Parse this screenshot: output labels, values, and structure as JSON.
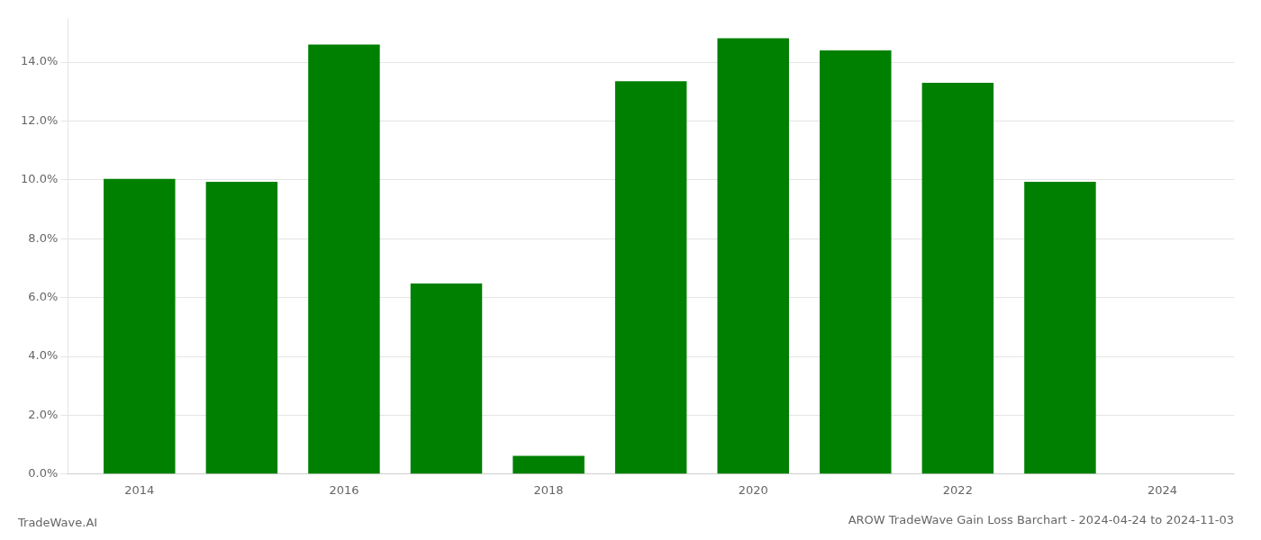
{
  "chart_data": {
    "type": "bar",
    "title": "AROW TradeWave Gain Loss Barchart - 2024-04-24 to 2024-11-03",
    "annotations": [
      "TradeWave.AI"
    ],
    "x": [
      2014,
      2015,
      2016,
      2017,
      2018,
      2019,
      2020,
      2021,
      2022,
      2023
    ],
    "values": [
      0.1003,
      0.0993,
      0.146,
      0.0648,
      0.0062,
      0.1335,
      0.1481,
      0.144,
      0.133,
      0.0993
    ],
    "color": "#008000",
    "xlim": [
      2013.3,
      2024.7
    ],
    "xticks": [
      2014,
      2016,
      2018,
      2020,
      2022,
      2024
    ],
    "ylim": [
      0.0,
      0.155
    ],
    "yticks": [
      {
        "value": 0.0,
        "label": "0.0%"
      },
      {
        "value": 0.02,
        "label": "2.0%"
      },
      {
        "value": 0.04,
        "label": "4.0%"
      },
      {
        "value": 0.06,
        "label": "6.0%"
      },
      {
        "value": 0.08,
        "label": "8.0%"
      },
      {
        "value": 0.1,
        "label": "10.0%"
      },
      {
        "value": 0.12,
        "label": "12.0%"
      },
      {
        "value": 0.14,
        "label": "14.0%"
      }
    ],
    "grid": "y"
  }
}
